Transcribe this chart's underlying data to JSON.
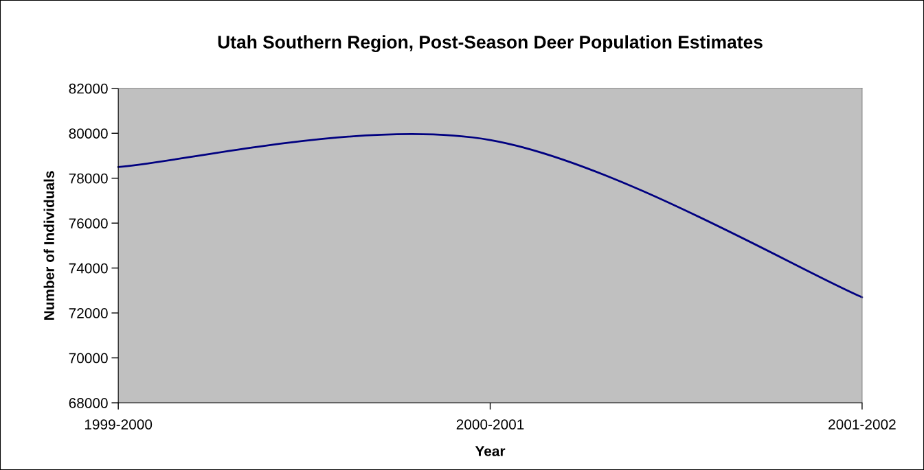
{
  "chart_data": {
    "type": "line",
    "title": "Utah Southern Region, Post-Season Deer Population Estimates",
    "xlabel": "Year",
    "ylabel": "Number of Individuals",
    "categories": [
      "1999-2000",
      "2000-2001",
      "2001-2002"
    ],
    "series": [
      {
        "color": "#000080",
        "values": [
          78500,
          79700,
          72700
        ]
      }
    ],
    "ylim": [
      68000,
      82000
    ],
    "yticks": [
      68000,
      70000,
      72000,
      74000,
      76000,
      78000,
      80000,
      82000
    ],
    "grid": false,
    "legend": false,
    "marker": "none",
    "line_style": "solid"
  }
}
